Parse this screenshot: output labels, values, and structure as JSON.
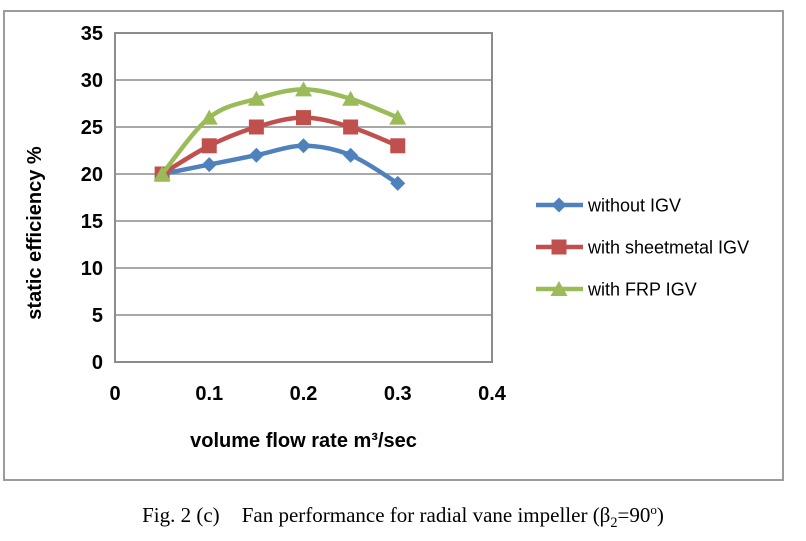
{
  "figure": {
    "caption": {
      "prefix": "Fig. 2 (c)",
      "body": "Fan performance for radial vane impeller (β",
      "sub": "2",
      "mid": "=90",
      "sup": "o",
      "end": ")"
    }
  },
  "chart_data": {
    "type": "line",
    "title": "",
    "xlabel": "volume flow rate m³/sec",
    "ylabel": "static efficiency %",
    "x": [
      0.05,
      0.1,
      0.15,
      0.2,
      0.25,
      0.3
    ],
    "series": [
      {
        "name": "without IGV",
        "color": "#4F81BD",
        "marker": "diamond",
        "values": [
          20,
          21,
          22,
          23,
          22,
          19
        ]
      },
      {
        "name": "with sheetmetal IGV",
        "color": "#C0504D",
        "marker": "square",
        "values": [
          20,
          23,
          25,
          26,
          25,
          23
        ]
      },
      {
        "name": "with FRP IGV",
        "color": "#9BBB59",
        "marker": "triangle",
        "values": [
          20,
          26,
          28,
          29,
          28,
          26
        ]
      }
    ],
    "xlim": [
      0,
      0.4
    ],
    "ylim": [
      0,
      35
    ],
    "xticks": [
      0,
      0.1,
      0.2,
      0.3,
      0.4
    ],
    "xtick_labels": [
      "0",
      "0.1",
      "0.2",
      "0.3",
      "0.4"
    ],
    "yticks": [
      0,
      5,
      10,
      15,
      20,
      25,
      30,
      35
    ],
    "ytick_labels": [
      "0",
      "5",
      "10",
      "15",
      "20",
      "25",
      "30",
      "35"
    ],
    "grid": true,
    "legend_position": "right",
    "grid_color": "#8c8c8c",
    "axis_color": "#8c8c8c",
    "text_color": "#000000"
  }
}
